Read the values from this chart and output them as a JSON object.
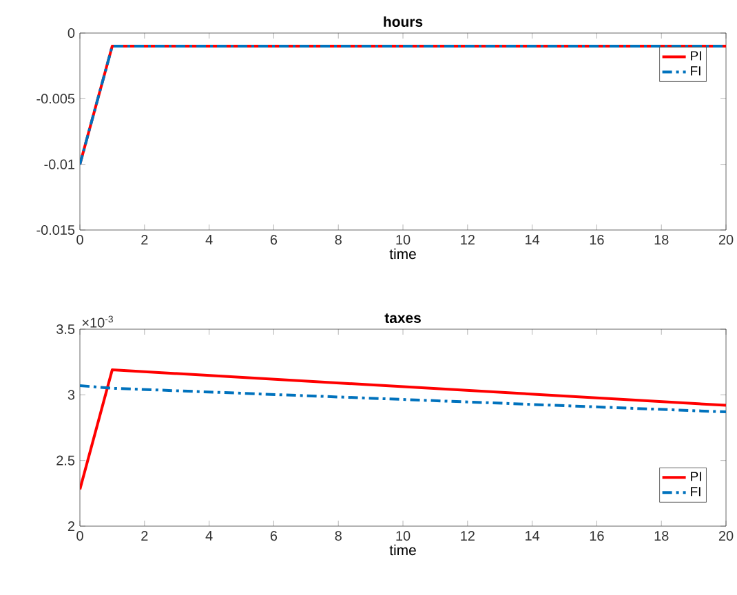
{
  "chart_data": [
    {
      "type": "line",
      "title": "hours",
      "xlabel": "time",
      "x": [
        0,
        1,
        20
      ],
      "xlim": [
        0,
        20
      ],
      "ylim": [
        -0.015,
        0
      ],
      "xticks": [
        0,
        2,
        4,
        6,
        8,
        10,
        12,
        14,
        16,
        18,
        20
      ],
      "yticks": [
        -0.015,
        -0.01,
        -0.005,
        0
      ],
      "legend": "top right",
      "marker": "none",
      "series": [
        {
          "name": "PI",
          "color": "#ff0000",
          "line_style": "solid",
          "values": [
            -0.01,
            -0.001,
            -0.001
          ]
        },
        {
          "name": "FI",
          "color": "#0072bd",
          "line_style": "dashed",
          "values": [
            -0.01,
            -0.001,
            -0.001
          ]
        }
      ]
    },
    {
      "type": "line",
      "title": "taxes",
      "xlabel": "time",
      "x": [
        0,
        1,
        20
      ],
      "xlim": [
        0,
        20
      ],
      "ylim": [
        2,
        3.5
      ],
      "xticks": [
        0,
        2,
        4,
        6,
        8,
        10,
        12,
        14,
        16,
        18,
        20
      ],
      "yticks": [
        2,
        2.5,
        3,
        3.5
      ],
      "legend": "bottom right",
      "marker": "none",
      "annotations": [
        "×10$^{-3}$"
      ],
      "series": [
        {
          "name": "PI",
          "color": "#ff0000",
          "line_style": "solid",
          "values": [
            2.28,
            3.19,
            2.92
          ]
        },
        {
          "name": "FI",
          "color": "#0072bd",
          "line_style": "dashed",
          "values": [
            3.07,
            3.05,
            2.87
          ]
        }
      ]
    }
  ]
}
